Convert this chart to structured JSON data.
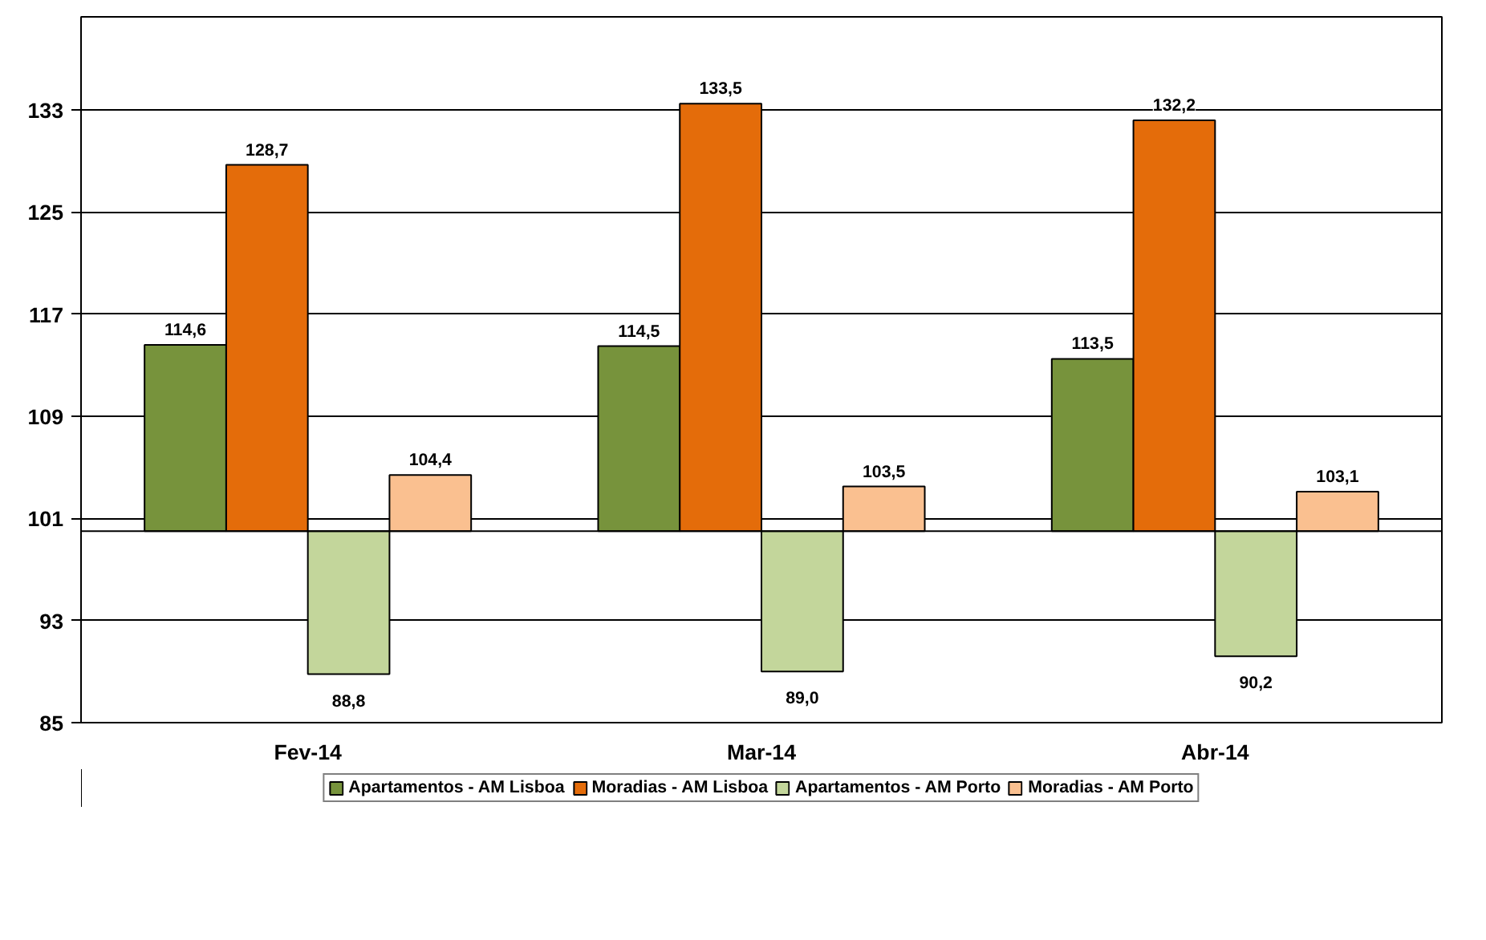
{
  "chart_data": {
    "type": "bar",
    "categories": [
      "Fev-14",
      "Mar-14",
      "Abr-14"
    ],
    "series": [
      {
        "name": "Apartamentos - AM Lisboa",
        "color": "#77933c",
        "base": [
          100,
          100,
          100
        ],
        "values": [
          14.6,
          14.5,
          13.5
        ],
        "value_labels": [
          "114,6",
          "114,5",
          "113,5"
        ]
      },
      {
        "name": "Moradias - AM Lisboa",
        "color": "#e46c0a",
        "base": [
          100,
          100,
          100
        ],
        "values": [
          28.7,
          33.5,
          32.2
        ],
        "value_labels": [
          "128,7",
          "133,5",
          "132,2"
        ]
      },
      {
        "name": "Apartamentos - AM Porto",
        "color": "#c3d69b",
        "base": [
          100,
          100,
          100
        ],
        "values": [
          -11.2,
          -11.0,
          -9.8
        ],
        "value_labels": [
          "88,8",
          "89,0",
          "90,2"
        ]
      },
      {
        "name": "Moradias - AM Porto",
        "color": "#fac090",
        "base": [
          100,
          100,
          100
        ],
        "values": [
          4.4,
          3.5,
          3.1
        ],
        "value_labels": [
          "104,4",
          "103,5",
          "103,1"
        ]
      }
    ],
    "ylim": [
      85,
      140.3
    ],
    "yticks": [
      85,
      93,
      101,
      109,
      117,
      125,
      133
    ],
    "grid": "y",
    "legend": "bottom",
    "ref_lines": [
      {
        "axis": "y",
        "value": 100
      }
    ]
  }
}
